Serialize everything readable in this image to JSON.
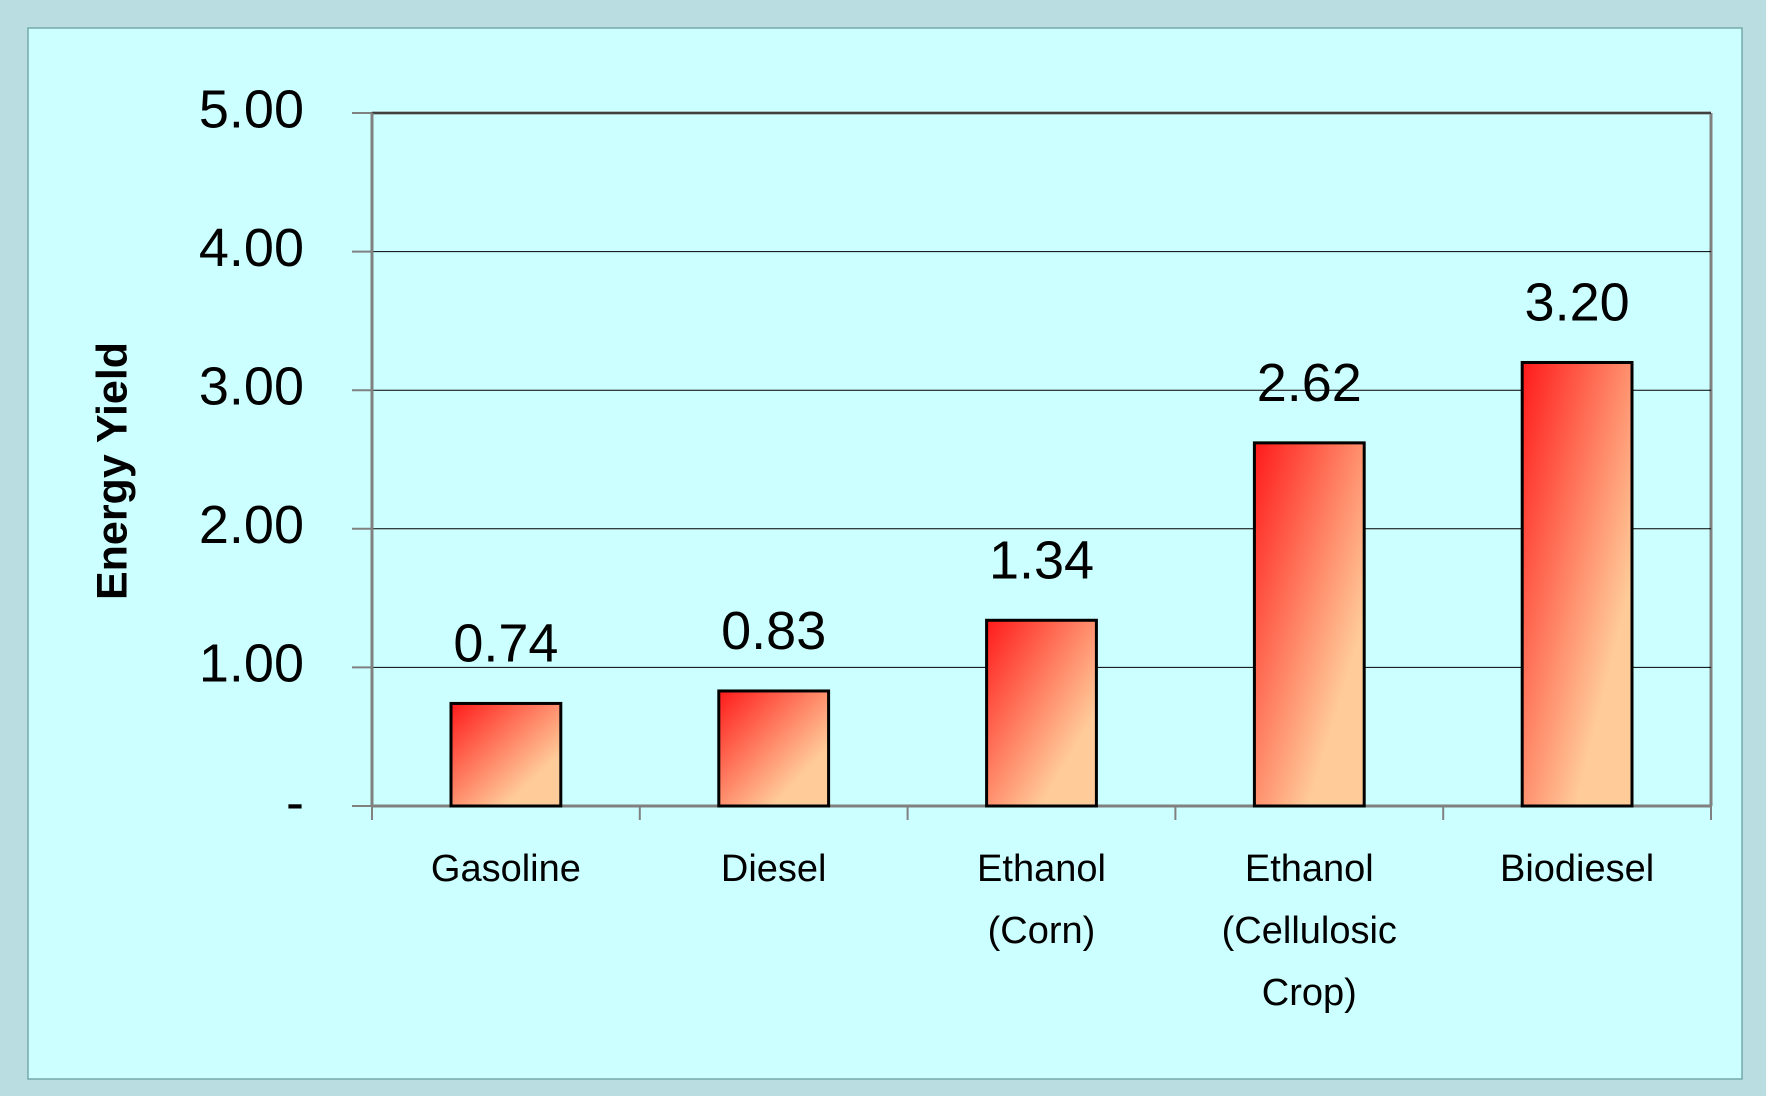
{
  "chart_data": {
    "type": "bar",
    "y_label": "Energy Yield",
    "categories": [
      "Gasoline",
      "Diesel",
      "Ethanol (Corn)",
      "Ethanol (Cellulosic Crop)",
      "Biodiesel"
    ],
    "values": [
      0.74,
      0.83,
      1.34,
      2.62,
      3.2
    ],
    "value_labels": [
      "0.74",
      "0.83",
      "1.34",
      "2.62",
      "3.20"
    ],
    "ylim": [
      0,
      5
    ],
    "yticks": [
      {
        "value": 0,
        "label": "-"
      },
      {
        "value": 1,
        "label": "1.00"
      },
      {
        "value": 2,
        "label": "2.00"
      },
      {
        "value": 3,
        "label": "3.00"
      },
      {
        "value": 4,
        "label": "4.00"
      },
      {
        "value": 5,
        "label": "5.00"
      }
    ],
    "grid": true,
    "color": [
      "#ff1a1a",
      "#ffcc99"
    ]
  }
}
